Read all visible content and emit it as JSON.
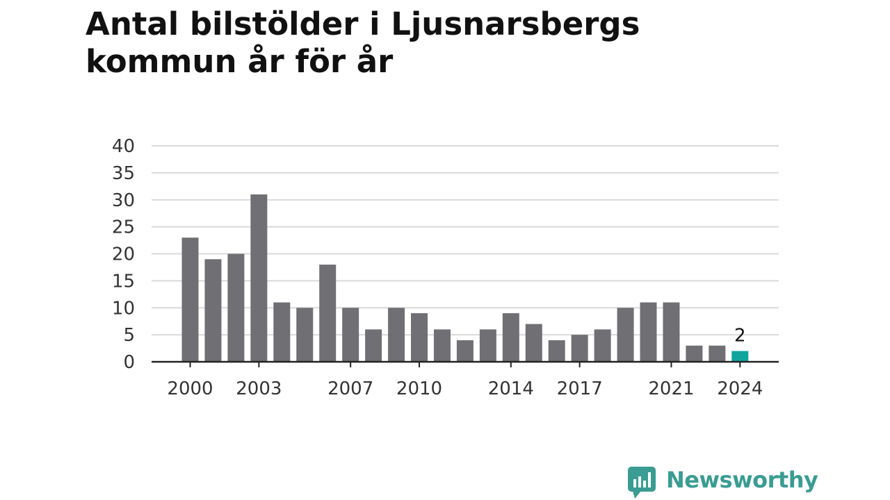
{
  "title": "Antal bilstölder i Ljusnarsbergs kommun år för år",
  "brand": {
    "name": "Newsworthy",
    "icon": "newsworthy-logo-icon",
    "color": "#3a9c92"
  },
  "colors": {
    "bar": "#706f74",
    "highlight": "#0fa59c",
    "grid": "#d9d9d9",
    "axis": "#222222",
    "text": "#333333"
  },
  "chart_data": {
    "type": "bar",
    "title": "Antal bilstölder i Ljusnarsbergs kommun år för år",
    "xlabel": "",
    "ylabel": "",
    "categories": [
      "2000",
      "2001",
      "2002",
      "2003",
      "2004",
      "2005",
      "2006",
      "2007",
      "2008",
      "2009",
      "2010",
      "2011",
      "2012",
      "2013",
      "2014",
      "2015",
      "2016",
      "2017",
      "2018",
      "2019",
      "2020",
      "2021",
      "2022",
      "2023",
      "2024"
    ],
    "values": [
      23,
      19,
      20,
      31,
      11,
      10,
      18,
      10,
      6,
      10,
      9,
      6,
      4,
      6,
      9,
      7,
      4,
      5,
      6,
      10,
      11,
      11,
      3,
      3,
      2
    ],
    "x_tick_labels": [
      "2000",
      "2003",
      "2007",
      "2010",
      "2014",
      "2017",
      "2021",
      "2024"
    ],
    "y_ticks": [
      0,
      5,
      10,
      15,
      20,
      25,
      30,
      35,
      40
    ],
    "ylim": [
      0,
      40
    ],
    "grid": true,
    "highlight_category": "2024",
    "annotations": [
      {
        "category": "2024",
        "text": "2"
      }
    ]
  }
}
